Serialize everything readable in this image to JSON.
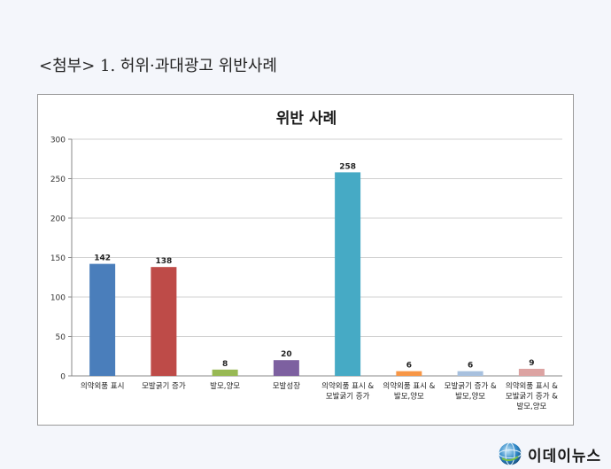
{
  "document": {
    "heading": "<첨부> 1. 허위·과대광고 위반사례"
  },
  "chart_data": {
    "type": "bar",
    "title": "위반 사례",
    "xlabel": "",
    "ylabel": "",
    "ylim": [
      0,
      300
    ],
    "yticks": [
      0,
      50,
      100,
      150,
      200,
      250,
      300
    ],
    "grid": true,
    "legend": "none",
    "categories": [
      [
        "의약외품 표시"
      ],
      [
        "모발굵기 증가"
      ],
      [
        "발모,양모"
      ],
      [
        "모발성장"
      ],
      [
        "의약외품 표시 &",
        "모발굵기 증가"
      ],
      [
        "의약외품 표시 &",
        "발모,양모"
      ],
      [
        "모발굵기 증가 &",
        "발모,양모"
      ],
      [
        "의약외품 표시 &",
        "모발굵기 증가 &",
        "발모,양모"
      ]
    ],
    "values": [
      142,
      138,
      8,
      20,
      258,
      6,
      6,
      9
    ],
    "colors": [
      "#4a7ebb",
      "#be4b48",
      "#98b954",
      "#7d60a0",
      "#46aac5",
      "#f79646",
      "#a7c0de",
      "#dca3a2"
    ]
  },
  "logo": {
    "text": "이데이뉴스"
  }
}
